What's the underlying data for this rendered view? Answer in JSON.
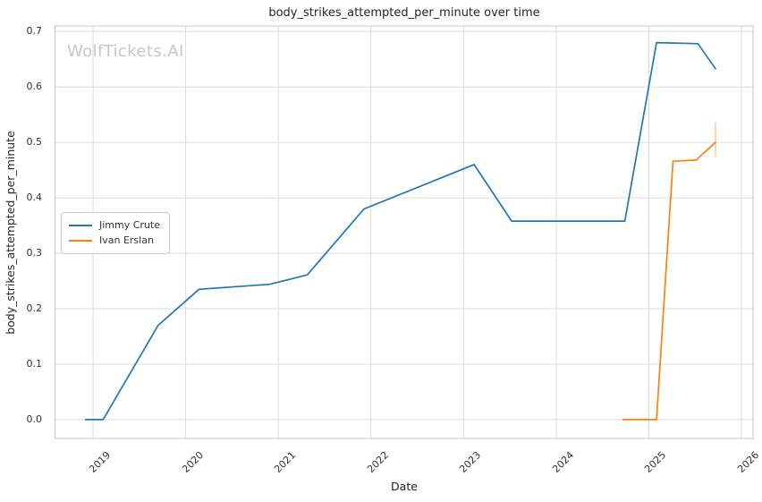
{
  "watermark": "WolfTickets.AI",
  "colors": {
    "grid": "#dcdcdc",
    "spine": "#c8c8c8",
    "title_text": "#262626",
    "tick_text": "#333333",
    "watermark_text": "#c7c7c7",
    "series_blue": "#1f77b4",
    "series_orange": "#ff7f0e"
  },
  "chart_data": {
    "type": "line",
    "title": "body_strikes_attempted_per_minute over time",
    "xlabel": "Date",
    "ylabel": "body_strikes_attempted_per_minute",
    "grid": true,
    "legend_position": "center-left",
    "xlim": [
      2018.589,
      2026.125
    ],
    "ylim": [
      -0.034,
      0.71
    ],
    "x_ticks": [
      2019,
      2020,
      2021,
      2022,
      2023,
      2024,
      2025,
      2026
    ],
    "x_tick_labels": [
      "2019",
      "2020",
      "2021",
      "2022",
      "2023",
      "2024",
      "2025",
      "2026"
    ],
    "y_ticks": [
      0.0,
      0.1,
      0.2,
      0.3,
      0.4,
      0.5,
      0.6,
      0.7
    ],
    "y_tick_labels": [
      "0.0",
      "0.1",
      "0.2",
      "0.3",
      "0.4",
      "0.5",
      "0.6",
      "0.7"
    ],
    "series": [
      {
        "name": "Jimmy Crute",
        "color": "#1f77b4",
        "points": [
          {
            "date": "2018-12-02",
            "value": 0.0
          },
          {
            "date": "2019-02-10",
            "value": 0.0
          },
          {
            "date": "2019-09-14",
            "value": 0.17
          },
          {
            "date": "2020-02-23",
            "value": 0.235
          },
          {
            "date": "2020-11-28",
            "value": 0.244
          },
          {
            "date": "2021-04-24",
            "value": 0.261
          },
          {
            "date": "2021-12-04",
            "value": 0.38
          },
          {
            "date": "2023-02-12",
            "value": 0.46
          },
          {
            "date": "2023-07-08",
            "value": 0.358
          },
          {
            "date": "2024-09-28",
            "value": 0.358
          },
          {
            "date": "2025-02-01",
            "value": 0.68
          },
          {
            "date": "2025-07-12",
            "value": 0.678
          },
          {
            "date": "2025-09-20",
            "value": 0.633
          }
        ]
      },
      {
        "name": "Ivan Erslan",
        "color": "#ff7f0e",
        "points": [
          {
            "date": "2024-09-20",
            "value": 0.0
          },
          {
            "date": "2025-02-01",
            "value": 0.0
          },
          {
            "date": "2025-04-05",
            "value": 0.466
          },
          {
            "date": "2025-07-05",
            "value": 0.468
          },
          {
            "date": "2025-09-20",
            "value": 0.5
          }
        ],
        "error_bar": {
          "date": "2025-09-20",
          "low": 0.474,
          "high": 0.536,
          "opacity": 0.3
        }
      }
    ]
  }
}
